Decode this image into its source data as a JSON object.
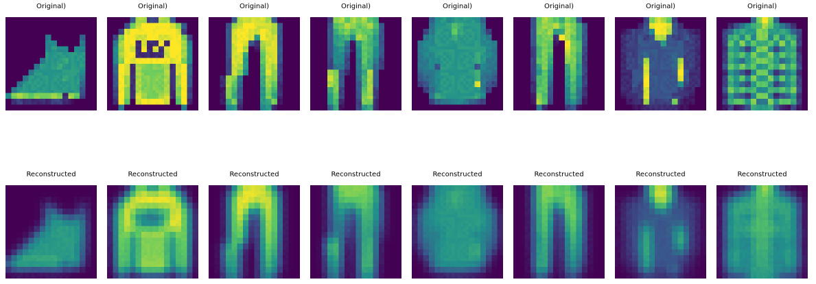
{
  "figure": {
    "background": "#ffffff"
  },
  "chart_data": {
    "type": "heatmap",
    "layout": {
      "rows": 2,
      "cols": 8,
      "grid": "fashion-mnist style images, axes off",
      "legend": "none"
    },
    "row_titles": [
      "Original)",
      "Reconstructed"
    ],
    "colormap": {
      "name": "viridis",
      "stops": [
        [
          0.0,
          "#440154"
        ],
        [
          0.25,
          "#3b528b"
        ],
        [
          0.5,
          "#21918c"
        ],
        [
          0.75,
          "#5ec962"
        ],
        [
          1.0,
          "#fde725"
        ]
      ]
    },
    "items": [
      {
        "name": "ankle-boot",
        "grid": [
          "0000000000000000",
          "0000000000000000",
          "0000000000000000",
          "0000000600000500",
          "0000000770000600",
          "0000000787707700",
          "0000000888888800",
          "0000006888988800",
          "0000068889888800",
          "0000688888888700",
          "0006888888988600",
          "0068888888888500",
          "0688888888888400",
          "7cdcbcccdc2db300",
          "0232222233210000",
          "0000000000000000"
        ]
      },
      {
        "name": "lee-pullover",
        "grid": [
          "00004dd33dd40000",
          "0004cefffffec400",
          "003effffffffe300",
          "03cffeeffeeffc30",
          "06dff2e22f2ffd60",
          "07dfe2f2e2effd70",
          "07dff22222effd70",
          "07cfeffffffefc70",
          "05fe2dccccd2ef50",
          "05fe2dccccd2ef50",
          "04fd2dccccd2df40",
          "04fd2dccccd2df40",
          "03fc2dccccd2cf30",
          "03fc2edccde2cf30",
          "02fb0effffe0bf20",
          "0060000000000600"
        ]
      },
      {
        "name": "trousers-a",
        "grid": [
          "00004deeeed40000",
          "0004deffeeed4000",
          "0004effeefed4000",
          "0004effe8fee4000",
          "0004efe42dee4000",
          "0004efd01cee4000",
          "0004ee900bee4000",
          "0003ee800bee4000",
          "0003ed800aed3000",
          "0003ec700aec3000",
          "002dc60009dc3000",
          "002db50009db2000",
          "001ca40008ca2000",
          "001c940008c92000",
          "0019c300089c1000",
          "0007820007820000"
        ]
      },
      {
        "name": "trousers-b",
        "grid": [
          "0003cdbdcdb90000",
          "0004bcdcbcda4000",
          "00049bcacbb94000",
          "000489a7dca84000",
          "000489618ba84000",
          "000478517ba74000",
          "000477407ba74000",
          "000377306b963000",
          "000366306a953000",
          "000dc42069d40000",
          "000ec4005ad40000",
          "000dc4004ad40000",
          "0009c3004bd30000",
          "0008b3004cd30000",
          "0008a2003cc20000",
          "0005910038920000"
        ]
      },
      {
        "name": "blouse",
        "grid": [
          "0005787888875000",
          "0006888a98886000",
          "0036888b98886300",
          "0067888988887600",
          "0677888888887760",
          "0678888888888760",
          "0677888888898760",
          "0667788888898660",
          "0667488888847660",
          "0566788888896650",
          "0456788888896540",
          "03467888888e6430",
          "0035788888886300",
          "0006988888897000",
          "0003566776543000",
          "0000000000000000"
        ]
      },
      {
        "name": "trousers-c",
        "grid": [
          "0004bdcb9cb40000",
          "0004cdcdbdc94000",
          "0004ccd89dc94000",
          "0004bcc2fdb94000",
          "0004bcb10fca4000",
          "0003acb00eca3000",
          "0003aca00dc93000",
          "0003bc900cc93000",
          "00039c8009c83000",
          "00038b7009b83000",
          "0003ab6008b73000",
          "0002ab5008a73000",
          "0002bb4007a62000",
          "0001ca4007962000",
          "0001db3006851000",
          "0000620003410000"
        ]
      },
      {
        "name": "jacket",
        "grid": [
          "000003cedb300000",
          "000024effe420000",
          "0123347ffd433210",
          "0233434dd4334320",
          "0233444484443320",
          "0233444444443320",
          "0233454444543320",
          "02334d44445d3320",
          "02334e44445e3320",
          "02244e44444f4220",
          "02244f44444e4220",
          "02243f4444473220",
          "02233e4444432200",
          "01223e4444332100",
          "00122d3333c21100",
          "0001122222211000"
        ]
      },
      {
        "name": "plaid-shirt",
        "grid": [
          "0000005cfc500000",
          "0024689adb864200",
          "0358988cc8898530",
          "039a7b7cc7b7a930",
          "03b8c8b99b8c8b30",
          "0298637cc7368920",
          "03a9b8c99c8b9a30",
          "039758acca857930",
          "04b9c9b88b9c9b40",
          "0286427cc7246820",
          "03a8b7c88c7b8a30",
          "0397538bb8357930",
          "04c9b9a77a9b9c40",
          "0285427cc7245820",
          "039bb8c66c8bb930",
          "0131249889421310"
        ]
      }
    ]
  }
}
